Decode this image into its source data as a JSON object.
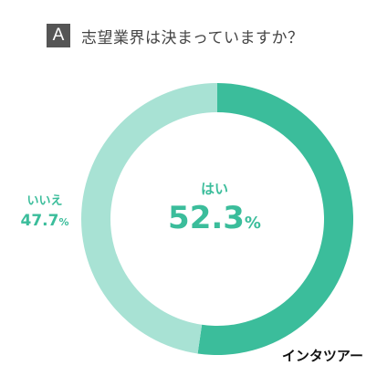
{
  "header": {
    "badge": "A",
    "question": "志望業界は決まっていますか？"
  },
  "chart_data": {
    "type": "pie",
    "variant": "donut",
    "categories": [
      "はい",
      "いいえ"
    ],
    "values": [
      52.3,
      47.7
    ],
    "unit": "%",
    "colors": [
      "#3bbd9b",
      "#a8e2d4"
    ]
  },
  "labels": {
    "yes": {
      "category": "はい",
      "value": "52.3",
      "unit": "%"
    },
    "no": {
      "category": "いいえ",
      "value": "47.7",
      "unit": "%"
    }
  },
  "logo": "インタツアー"
}
